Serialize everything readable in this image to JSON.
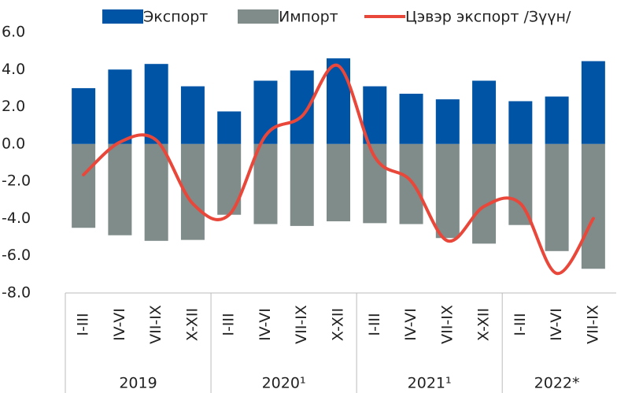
{
  "chart_data": {
    "type": "bar",
    "categories": [
      "I-III",
      "IV-VI",
      "VII-IX",
      "X-XII",
      "I-III",
      "IV-VI",
      "VII-IX",
      "X-XII",
      "I-III",
      "IV-VI",
      "VII-IX",
      "X-XII",
      "I-III",
      "IV-VI",
      "VII-IX"
    ],
    "groups": [
      {
        "label": "2019",
        "count": 4
      },
      {
        "label": "2020¹",
        "count": 4
      },
      {
        "label": "2021¹",
        "count": 4
      },
      {
        "label": "2022*",
        "count": 3
      }
    ],
    "series": [
      {
        "name": "Экспорт",
        "color": "#0054a6",
        "kind": "bar",
        "values": [
          3.0,
          4.0,
          4.3,
          3.1,
          1.75,
          3.4,
          3.95,
          4.6,
          3.1,
          2.7,
          2.4,
          3.4,
          2.3,
          2.55,
          4.45
        ]
      },
      {
        "name": "Импорт",
        "color": "#7f8c8a",
        "kind": "bar",
        "values": [
          -4.5,
          -4.9,
          -5.2,
          -5.15,
          -3.8,
          -4.3,
          -4.4,
          -4.15,
          -4.25,
          -4.3,
          -5.05,
          -5.35,
          -4.35,
          -5.75,
          -6.7
        ]
      },
      {
        "name": "Цэвэр экспорт /Зүүн/",
        "color": "#e8473a",
        "kind": "line",
        "values": [
          -1.65,
          0.1,
          0.2,
          -3.2,
          -3.8,
          0.45,
          1.5,
          4.2,
          -0.7,
          -2.0,
          -5.2,
          -3.35,
          -3.2,
          -6.95,
          -4.0
        ]
      }
    ],
    "ylim": [
      -8,
      6
    ],
    "yticks": [
      {
        "value": 6,
        "label": "6.0"
      },
      {
        "value": 4,
        "label": "4.0"
      },
      {
        "value": 2,
        "label": "2.0"
      },
      {
        "value": 0,
        "label": "0.0"
      },
      {
        "value": -2,
        "label": "-2.0"
      },
      {
        "value": -4,
        "label": "-4.0"
      },
      {
        "value": -6,
        "label": "-6.0"
      },
      {
        "value": -8,
        "label": "-8.0"
      }
    ]
  }
}
